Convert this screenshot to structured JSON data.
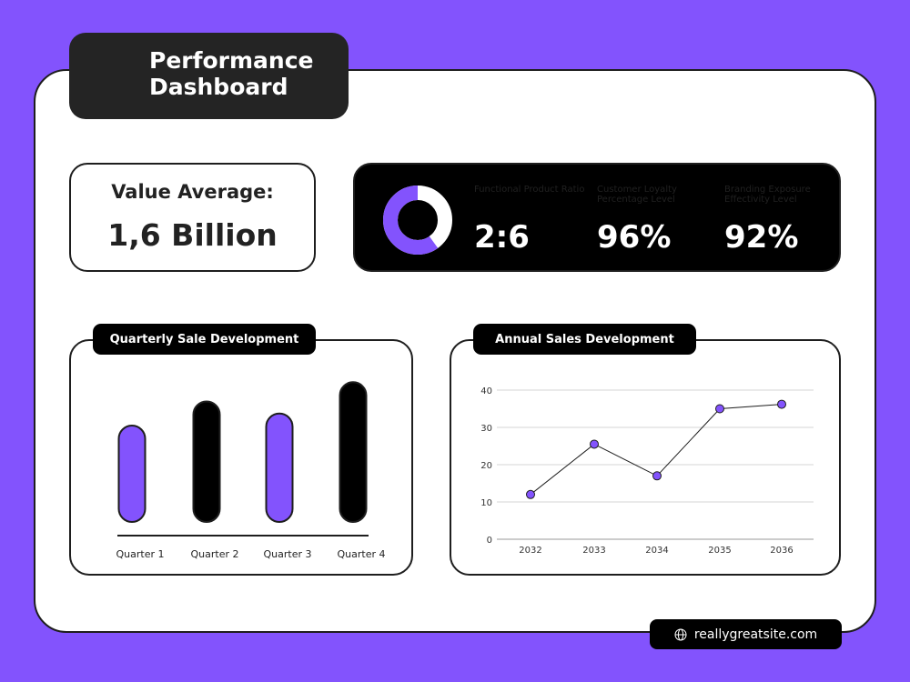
{
  "header": {
    "title": "Performance Dashboard"
  },
  "summary": {
    "label": "Value Average:",
    "value": "1,6 Billion"
  },
  "kpis": [
    {
      "label": "Functional Product Ratio",
      "value": "2:6"
    },
    {
      "label": "Customer Loyalty Percentage Level",
      "value": "96%"
    },
    {
      "label": "Branding Exposure Effectivity Level",
      "value": "92%"
    }
  ],
  "donut": {
    "fraction_light": 0.4,
    "fraction_accent": 0.6
  },
  "colors": {
    "accent": "#8353fd",
    "dark": "#000000",
    "background": "#8353fd"
  },
  "chart_data": [
    {
      "type": "bar",
      "title": "Quarterly Sale Development",
      "categories": [
        "Quarter 1",
        "Quarter 2",
        "Quarter 3",
        "Quarter 4"
      ],
      "values": [
        4,
        5,
        4.5,
        5.8
      ],
      "bar_colors": [
        "#8353fd",
        "#000000",
        "#8353fd",
        "#000000"
      ],
      "ylim": [
        0,
        6
      ],
      "grid": false
    },
    {
      "type": "line",
      "title": "Annual Sales Development",
      "x": [
        "2032",
        "2033",
        "2034",
        "2035",
        "2036"
      ],
      "series": [
        {
          "values": [
            12,
            25.5,
            17,
            35,
            36.2
          ]
        }
      ],
      "yticks": [
        "0",
        "10",
        "20",
        "30",
        "40"
      ],
      "ylim": [
        0,
        40
      ],
      "grid": true
    }
  ],
  "footer": {
    "url": "reallygreatsite.com",
    "icon": "globe-icon"
  }
}
